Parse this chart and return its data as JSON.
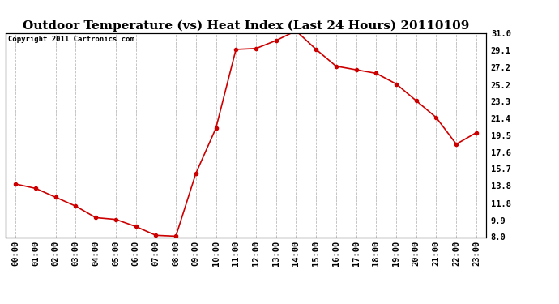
{
  "title": "Outdoor Temperature (vs) Heat Index (Last 24 Hours) 20110109",
  "copyright": "Copyright 2011 Cartronics.com",
  "x_labels": [
    "00:00",
    "01:00",
    "02:00",
    "03:00",
    "04:00",
    "05:00",
    "06:00",
    "07:00",
    "08:00",
    "09:00",
    "10:00",
    "11:00",
    "12:00",
    "13:00",
    "14:00",
    "15:00",
    "16:00",
    "17:00",
    "18:00",
    "19:00",
    "20:00",
    "21:00",
    "22:00",
    "23:00"
  ],
  "y_values": [
    14.0,
    13.5,
    12.5,
    11.5,
    10.2,
    10.0,
    9.2,
    8.2,
    8.1,
    15.2,
    20.3,
    29.2,
    29.3,
    30.2,
    31.3,
    29.2,
    27.3,
    26.9,
    26.5,
    25.3,
    23.4,
    21.5,
    18.5,
    19.8
  ],
  "line_color": "#cc0000",
  "marker": "o",
  "marker_size": 3,
  "marker_color": "#cc0000",
  "ylim": [
    8.0,
    31.0
  ],
  "y_right_ticks": [
    8.0,
    9.9,
    11.8,
    13.8,
    15.7,
    17.6,
    19.5,
    21.4,
    23.3,
    25.2,
    27.2,
    29.1,
    31.0
  ],
  "background_color": "#ffffff",
  "grid_color": "#bbbbbb",
  "grid_style": "--",
  "title_fontsize": 11,
  "tick_fontsize": 7.5,
  "copyright_fontsize": 6.5
}
